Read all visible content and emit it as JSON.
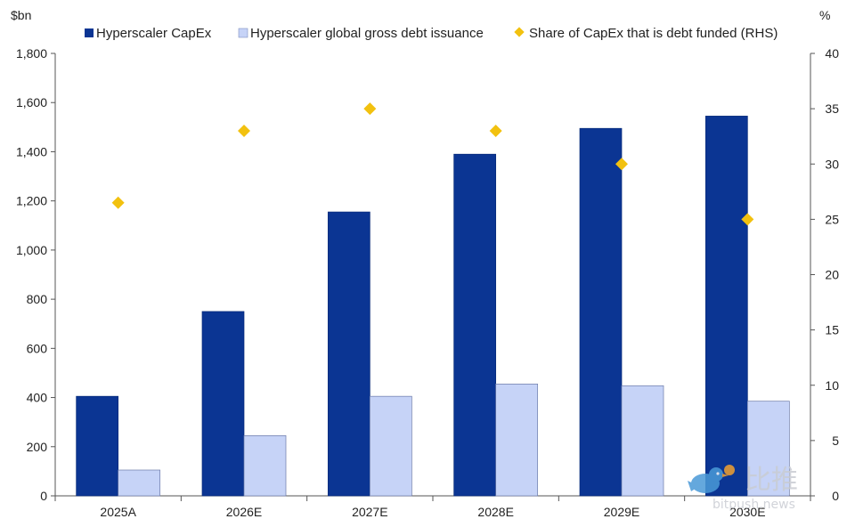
{
  "chart_data": {
    "type": "bar",
    "categories": [
      "2025A",
      "2026E",
      "2027E",
      "2028E",
      "2029E",
      "2030E"
    ],
    "series": [
      {
        "name": "Hyperscaler CapEx",
        "kind": "bar",
        "axis": "left",
        "color": "#0b3593",
        "values": [
          405,
          750,
          1155,
          1390,
          1495,
          1545
        ]
      },
      {
        "name": "Hyperscaler global gross debt issuance",
        "kind": "bar",
        "axis": "left",
        "color": "#c6d3f7",
        "values": [
          105,
          245,
          405,
          455,
          448,
          385
        ]
      },
      {
        "name": "Share of CapEx that is debt funded (RHS)",
        "kind": "marker",
        "axis": "right",
        "color": "#f2c10f",
        "values": [
          26.5,
          33,
          35,
          33,
          30,
          25
        ]
      }
    ],
    "ylabel_left": "$bn",
    "ylabel_right": "%",
    "ylim_left": [
      0,
      1800
    ],
    "yticks_left": [
      "0",
      "200",
      "400",
      "600",
      "800",
      "1,000",
      "1,200",
      "1,400",
      "1,600",
      "1,800"
    ],
    "ylim_right": [
      0,
      40
    ],
    "yticks_right": [
      "0",
      "5",
      "10",
      "15",
      "20",
      "25",
      "30",
      "35",
      "40"
    ],
    "grid": false,
    "legend": "top"
  },
  "watermark": {
    "text": "比推",
    "subtext": "bitpush.news",
    "icon": "bird-icon"
  }
}
